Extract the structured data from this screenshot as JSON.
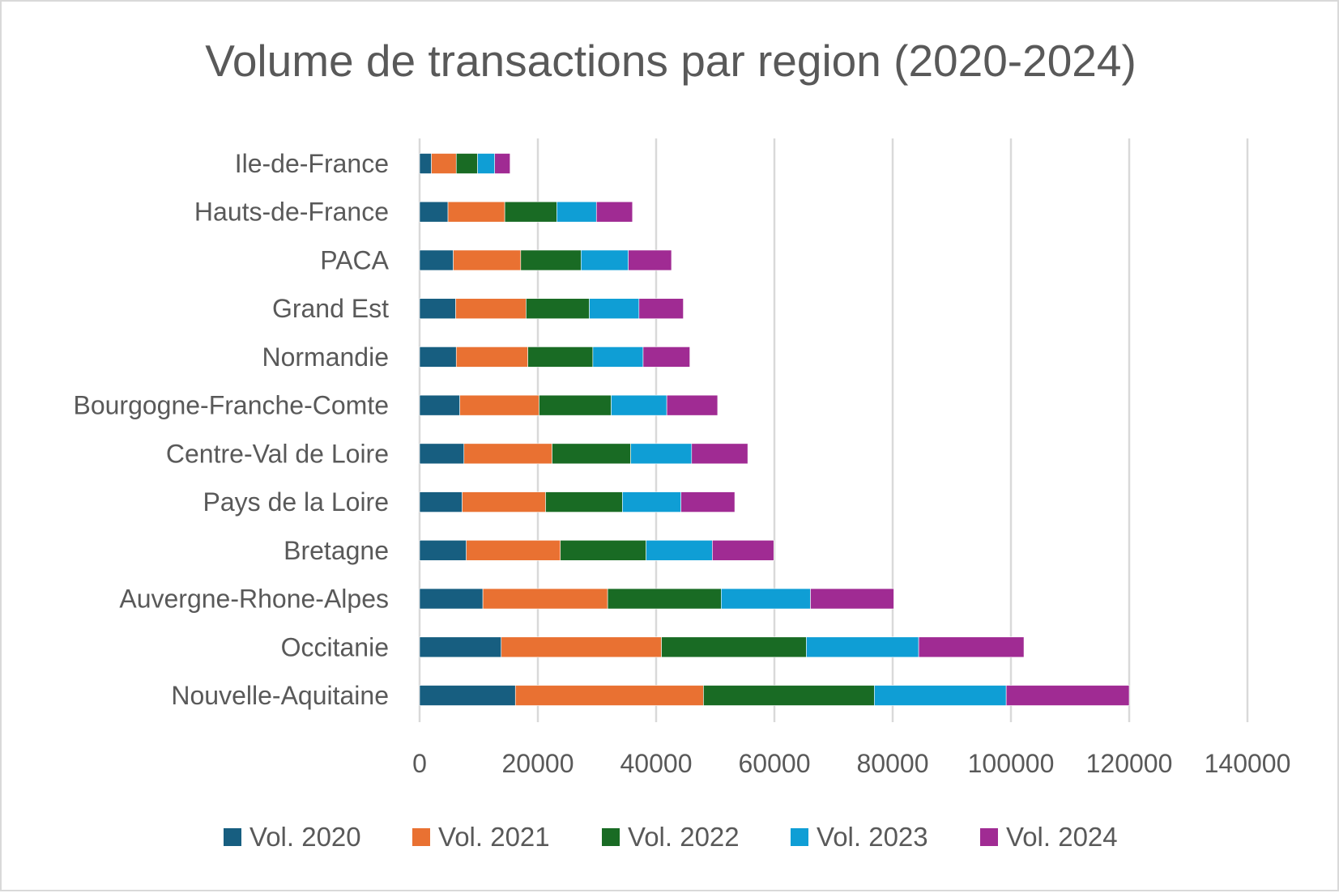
{
  "chart_data": {
    "type": "bar",
    "orientation": "horizontal",
    "stacked": true,
    "title": "Volume de transactions par region (2020-2024)",
    "xlabel": "",
    "ylabel": "",
    "xlim": [
      0,
      140000
    ],
    "x_ticks": [
      "0",
      "20000",
      "40000",
      "60000",
      "80000",
      "100000",
      "120000",
      "140000"
    ],
    "grid": "vertical major gridlines",
    "legend_position": "bottom",
    "categories": [
      "Ile-de-France",
      "Hauts-de-France",
      "PACA",
      "Grand Est",
      "Normandie",
      "Bourgogne-Franche-Comte",
      "Centre-Val de Loire",
      "Pays de la Loire",
      "Bretagne",
      "Auvergne-Rhone-Alpes",
      "Occitanie",
      "Nouvelle-Aquitaine"
    ],
    "series": [
      {
        "name": "Vol. 2020",
        "color": "#175e80",
        "values": [
          2000,
          4800,
          5700,
          6100,
          6200,
          6800,
          7500,
          7200,
          7900,
          10700,
          13800,
          16200
        ]
      },
      {
        "name": "Vol. 2021",
        "color": "#e97132",
        "values": [
          4200,
          9600,
          11400,
          11900,
          12100,
          13400,
          14900,
          14100,
          15900,
          21100,
          27100,
          31800
        ]
      },
      {
        "name": "Vol. 2022",
        "color": "#196b24",
        "values": [
          3600,
          8800,
          10200,
          10700,
          11000,
          12200,
          13300,
          13000,
          14500,
          19200,
          24500,
          28900
        ]
      },
      {
        "name": "Vol. 2023",
        "color": "#0f9ed5",
        "values": [
          2900,
          6700,
          8000,
          8400,
          8500,
          9400,
          10300,
          9900,
          11200,
          15100,
          19000,
          22300
        ]
      },
      {
        "name": "Vol. 2024",
        "color": "#a02b93",
        "values": [
          2600,
          6100,
          7300,
          7500,
          7900,
          8600,
          9500,
          9100,
          10400,
          14100,
          17800,
          20800
        ]
      }
    ]
  }
}
